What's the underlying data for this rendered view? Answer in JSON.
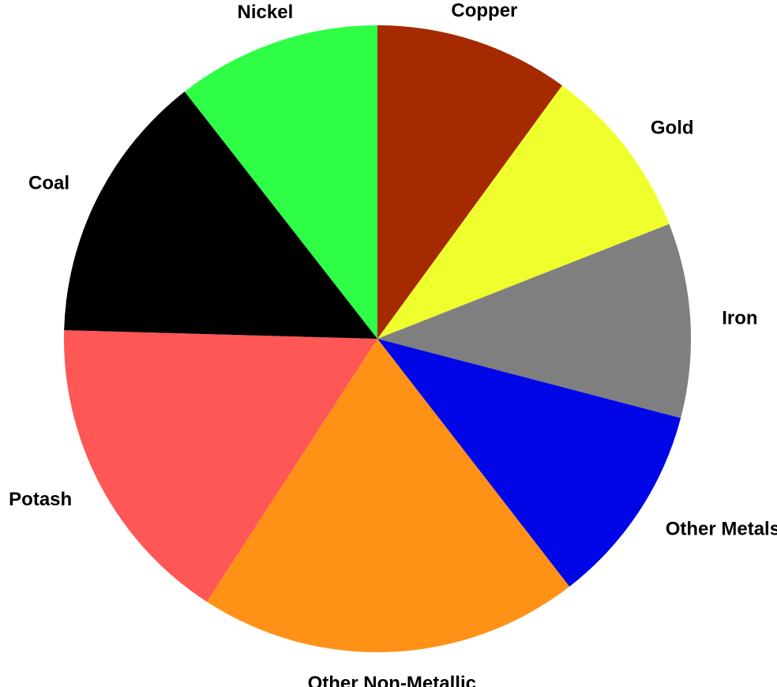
{
  "chart_data": {
    "type": "pie",
    "title": "",
    "start_angle_deg": 0,
    "direction": "clockwise",
    "slices": [
      {
        "label": "Copper",
        "value": 9.8,
        "color": "#A52A00"
      },
      {
        "label": "Gold",
        "value": 8.8,
        "color": "#EFFF2E"
      },
      {
        "label": "Iron",
        "value": 9.8,
        "color": "#7F7F7F"
      },
      {
        "label": "Other Metals",
        "value": 10.2,
        "color": "#0006E6"
      },
      {
        "label": "Other Non-Metallic",
        "value": 19.2,
        "color": "#FF9216"
      },
      {
        "label": "Potash",
        "value": 15.9,
        "color": "#FF5656"
      },
      {
        "label": "Coal",
        "value": 13.7,
        "color": "#000000"
      },
      {
        "label": "Nickel",
        "value": 10.3,
        "color": "#2EFF46"
      }
    ]
  }
}
